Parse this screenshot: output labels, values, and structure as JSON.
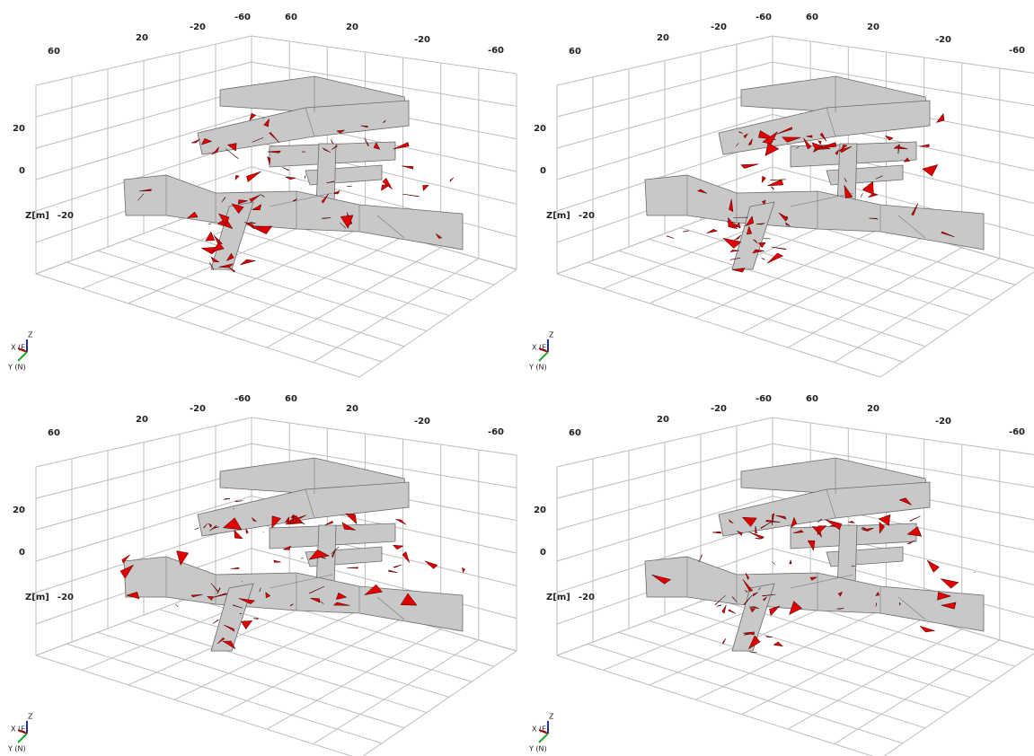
{
  "panels": [
    {
      "x_ticks": [
        "60",
        "20",
        "-20",
        "-60"
      ],
      "y_ticks": [
        "60",
        "20",
        "-20",
        "-60"
      ],
      "z_ticks": [
        "20",
        "0",
        "-20"
      ],
      "z_title": "Z[m]",
      "triad": {
        "z": "Z",
        "x": "X (E)",
        "y": "Y (N)"
      }
    },
    {
      "x_ticks": [
        "60",
        "20",
        "-20",
        "-60"
      ],
      "y_ticks": [
        "60",
        "20",
        "-20",
        "-60"
      ],
      "z_ticks": [
        "20",
        "0",
        "-20"
      ],
      "z_title": "Z[m]",
      "triad": {
        "z": "Z",
        "x": "X (E)",
        "y": "Y (N)"
      }
    },
    {
      "x_ticks": [
        "60",
        "20",
        "-20",
        "-60"
      ],
      "y_ticks": [
        "60",
        "20",
        "-20",
        "-60"
      ],
      "z_ticks": [
        "20",
        "0",
        "-20"
      ],
      "z_title": "Z[m]",
      "triad": {
        "z": "Z",
        "x": "X (E)",
        "y": "Y (N)"
      }
    },
    {
      "x_ticks": [
        "60",
        "20",
        "-20",
        "-60"
      ],
      "y_ticks": [
        "60",
        "20",
        "-20",
        "-60"
      ],
      "z_ticks": [
        "20",
        "0",
        "-20"
      ],
      "z_title": "Z[m]",
      "triad": {
        "z": "Z",
        "x": "X (E)",
        "y": "Y (N)"
      }
    }
  ]
}
